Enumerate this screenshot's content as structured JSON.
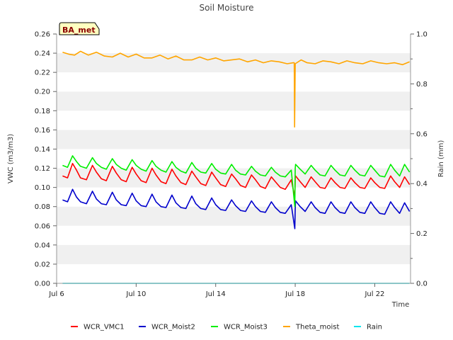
{
  "chart_data": {
    "type": "line",
    "title": "Soil Moisture",
    "badge": "BA_met",
    "xlabel": "Time",
    "ylabel": "VWC (m3/m3)",
    "y2label": "Rain (mm)",
    "xlim": [
      0,
      17.8
    ],
    "ylim": [
      0,
      0.26
    ],
    "y2lim": [
      0,
      1.0
    ],
    "x_ticks": [
      {
        "value": 0,
        "label": "Jul 6"
      },
      {
        "value": 4,
        "label": "Jul 10"
      },
      {
        "value": 8,
        "label": "Jul 14"
      },
      {
        "value": 12,
        "label": "Jul 18"
      },
      {
        "value": 16,
        "label": "Jul 22"
      }
    ],
    "y_ticks": [
      0.0,
      0.02,
      0.04,
      0.06,
      0.08,
      0.1,
      0.12,
      0.14,
      0.16,
      0.18,
      0.2,
      0.22,
      0.24,
      0.26
    ],
    "y_tick_labels": [
      "0.00",
      "0.02",
      "0.04",
      "0.06",
      "0.08",
      "0.10",
      "0.12",
      "0.14",
      "0.16",
      "0.18",
      "0.20",
      "0.22",
      "0.24",
      "0.26"
    ],
    "y2_ticks": [
      0.0,
      0.2,
      0.4,
      0.6,
      0.8,
      1.0
    ],
    "y2_tick_labels": [
      "0.0",
      "0.2",
      "0.4",
      "0.6",
      "0.8",
      "1.0"
    ],
    "grid": "horizontal bands",
    "legend_position": "bottom",
    "series": [
      {
        "name": "WCR_VMC1",
        "color": "#ff0000",
        "axis": "left",
        "x": [
          0.3,
          0.55,
          0.8,
          1.0,
          1.2,
          1.5,
          1.8,
          2.0,
          2.25,
          2.5,
          2.8,
          3.0,
          3.25,
          3.5,
          3.8,
          4.0,
          4.25,
          4.5,
          4.8,
          5.0,
          5.25,
          5.5,
          5.8,
          6.0,
          6.25,
          6.5,
          6.8,
          7.0,
          7.25,
          7.5,
          7.8,
          8.0,
          8.25,
          8.5,
          8.8,
          9.0,
          9.25,
          9.5,
          9.8,
          10.0,
          10.25,
          10.5,
          10.8,
          11.0,
          11.25,
          11.5,
          11.8,
          11.98,
          12.0,
          12.02,
          12.25,
          12.5,
          12.8,
          13.0,
          13.25,
          13.5,
          13.8,
          14.0,
          14.25,
          14.5,
          14.8,
          15.0,
          15.25,
          15.5,
          15.8,
          16.0,
          16.25,
          16.5,
          16.8,
          17.0,
          17.25,
          17.5,
          17.75
        ],
        "y": [
          0.112,
          0.11,
          0.125,
          0.118,
          0.11,
          0.108,
          0.123,
          0.116,
          0.109,
          0.107,
          0.122,
          0.115,
          0.108,
          0.106,
          0.121,
          0.114,
          0.107,
          0.105,
          0.12,
          0.113,
          0.106,
          0.104,
          0.119,
          0.112,
          0.105,
          0.103,
          0.117,
          0.111,
          0.104,
          0.102,
          0.116,
          0.11,
          0.103,
          0.101,
          0.114,
          0.109,
          0.102,
          0.1,
          0.113,
          0.108,
          0.101,
          0.099,
          0.111,
          0.106,
          0.1,
          0.098,
          0.108,
          0.09,
          0.11,
          0.112,
          0.106,
          0.1,
          0.111,
          0.106,
          0.1,
          0.099,
          0.11,
          0.105,
          0.1,
          0.099,
          0.11,
          0.105,
          0.1,
          0.099,
          0.11,
          0.105,
          0.1,
          0.099,
          0.112,
          0.106,
          0.1,
          0.111,
          0.103
        ]
      },
      {
        "name": "WCR_Moist2",
        "color": "#0000cc",
        "axis": "left",
        "x": [
          0.3,
          0.55,
          0.8,
          1.0,
          1.2,
          1.5,
          1.8,
          2.0,
          2.25,
          2.5,
          2.8,
          3.0,
          3.25,
          3.5,
          3.8,
          4.0,
          4.25,
          4.5,
          4.8,
          5.0,
          5.25,
          5.5,
          5.8,
          6.0,
          6.25,
          6.5,
          6.8,
          7.0,
          7.25,
          7.5,
          7.8,
          8.0,
          8.25,
          8.5,
          8.8,
          9.0,
          9.25,
          9.5,
          9.8,
          10.0,
          10.25,
          10.5,
          10.8,
          11.0,
          11.25,
          11.5,
          11.8,
          11.98,
          12.0,
          12.02,
          12.25,
          12.5,
          12.8,
          13.0,
          13.25,
          13.5,
          13.8,
          14.0,
          14.25,
          14.5,
          14.8,
          15.0,
          15.25,
          15.5,
          15.8,
          16.0,
          16.25,
          16.5,
          16.8,
          17.0,
          17.25,
          17.5,
          17.75
        ],
        "y": [
          0.087,
          0.085,
          0.098,
          0.09,
          0.085,
          0.083,
          0.096,
          0.088,
          0.083,
          0.082,
          0.095,
          0.087,
          0.082,
          0.081,
          0.094,
          0.086,
          0.081,
          0.08,
          0.093,
          0.085,
          0.08,
          0.079,
          0.092,
          0.084,
          0.079,
          0.078,
          0.091,
          0.083,
          0.078,
          0.077,
          0.089,
          0.082,
          0.077,
          0.076,
          0.087,
          0.081,
          0.076,
          0.075,
          0.086,
          0.08,
          0.075,
          0.074,
          0.085,
          0.079,
          0.074,
          0.073,
          0.082,
          0.057,
          0.078,
          0.086,
          0.08,
          0.075,
          0.085,
          0.079,
          0.074,
          0.073,
          0.085,
          0.079,
          0.074,
          0.073,
          0.085,
          0.079,
          0.074,
          0.073,
          0.085,
          0.079,
          0.073,
          0.072,
          0.085,
          0.079,
          0.073,
          0.084,
          0.075
        ]
      },
      {
        "name": "WCR_Moist3",
        "color": "#00ee00",
        "axis": "left",
        "x": [
          0.3,
          0.55,
          0.8,
          1.0,
          1.2,
          1.5,
          1.8,
          2.0,
          2.25,
          2.5,
          2.8,
          3.0,
          3.25,
          3.5,
          3.8,
          4.0,
          4.25,
          4.5,
          4.8,
          5.0,
          5.25,
          5.5,
          5.8,
          6.0,
          6.25,
          6.5,
          6.8,
          7.0,
          7.25,
          7.5,
          7.8,
          8.0,
          8.25,
          8.5,
          8.8,
          9.0,
          9.25,
          9.5,
          9.8,
          10.0,
          10.25,
          10.5,
          10.8,
          11.0,
          11.25,
          11.5,
          11.8,
          11.98,
          12.0,
          12.02,
          12.25,
          12.5,
          12.8,
          13.0,
          13.25,
          13.5,
          13.8,
          14.0,
          14.25,
          14.5,
          14.8,
          15.0,
          15.25,
          15.5,
          15.8,
          16.0,
          16.25,
          16.5,
          16.8,
          17.0,
          17.25,
          17.5,
          17.75
        ],
        "y": [
          0.123,
          0.121,
          0.133,
          0.127,
          0.122,
          0.12,
          0.131,
          0.125,
          0.121,
          0.119,
          0.13,
          0.124,
          0.12,
          0.118,
          0.129,
          0.123,
          0.119,
          0.117,
          0.128,
          0.122,
          0.118,
          0.116,
          0.127,
          0.121,
          0.117,
          0.115,
          0.126,
          0.12,
          0.116,
          0.115,
          0.125,
          0.119,
          0.115,
          0.114,
          0.124,
          0.118,
          0.114,
          0.113,
          0.122,
          0.117,
          0.113,
          0.112,
          0.121,
          0.116,
          0.112,
          0.111,
          0.118,
          0.08,
          0.12,
          0.124,
          0.119,
          0.114,
          0.123,
          0.118,
          0.113,
          0.112,
          0.123,
          0.118,
          0.113,
          0.112,
          0.123,
          0.118,
          0.113,
          0.112,
          0.123,
          0.118,
          0.112,
          0.111,
          0.124,
          0.118,
          0.112,
          0.124,
          0.116
        ]
      },
      {
        "name": "Theta_moist",
        "color": "#ffa500",
        "axis": "left",
        "x": [
          0.3,
          0.6,
          0.9,
          1.2,
          1.6,
          2.0,
          2.4,
          2.8,
          3.2,
          3.6,
          4.0,
          4.4,
          4.8,
          5.2,
          5.6,
          6.0,
          6.4,
          6.8,
          7.2,
          7.6,
          8.0,
          8.4,
          8.8,
          9.2,
          9.6,
          10.0,
          10.4,
          10.8,
          11.2,
          11.6,
          11.9,
          11.95,
          11.97,
          12.0,
          12.3,
          12.6,
          13.0,
          13.4,
          13.8,
          14.2,
          14.6,
          15.0,
          15.4,
          15.8,
          16.2,
          16.6,
          17.0,
          17.4,
          17.75
        ],
        "y": [
          0.241,
          0.239,
          0.238,
          0.242,
          0.238,
          0.241,
          0.237,
          0.236,
          0.24,
          0.236,
          0.239,
          0.235,
          0.235,
          0.238,
          0.234,
          0.237,
          0.233,
          0.233,
          0.236,
          0.233,
          0.235,
          0.232,
          0.233,
          0.234,
          0.231,
          0.233,
          0.23,
          0.232,
          0.231,
          0.229,
          0.23,
          0.23,
          0.163,
          0.229,
          0.233,
          0.23,
          0.229,
          0.232,
          0.231,
          0.229,
          0.232,
          0.23,
          0.229,
          0.232,
          0.23,
          0.229,
          0.23,
          0.228,
          0.231
        ]
      },
      {
        "name": "Rain",
        "color": "#00e5ee",
        "axis": "right",
        "x": [
          0.3,
          17.75
        ],
        "y": [
          0.0,
          0.0
        ]
      }
    ]
  }
}
